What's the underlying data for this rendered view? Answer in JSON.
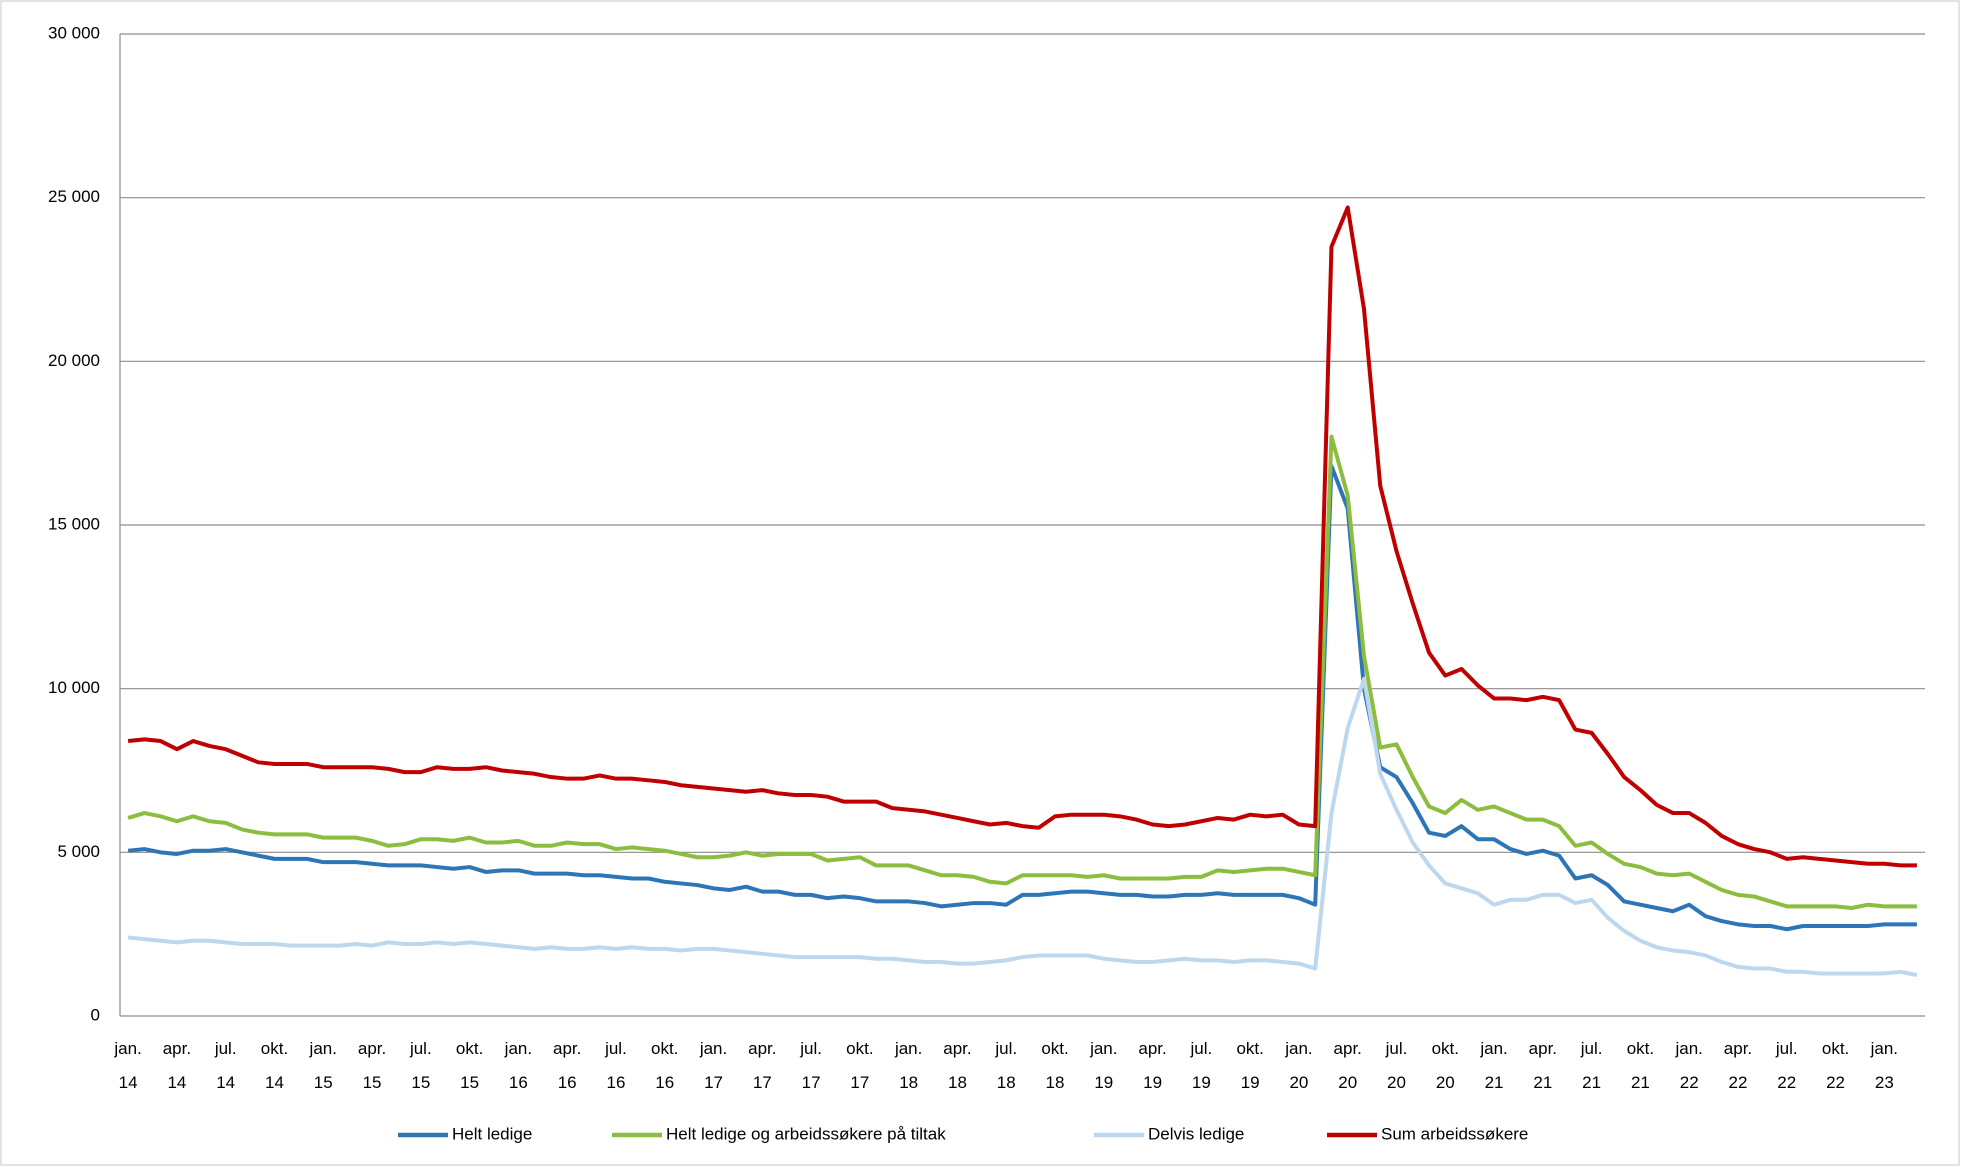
{
  "chart_data": {
    "type": "line",
    "categories": [
      "jan. 14",
      null,
      null,
      "apr. 14",
      null,
      null,
      "jul. 14",
      null,
      null,
      "okt. 14",
      null,
      null,
      "jan. 15",
      null,
      null,
      "apr. 15",
      null,
      null,
      "jul. 15",
      null,
      null,
      "okt. 15",
      null,
      null,
      "jan. 16",
      null,
      null,
      "apr. 16",
      null,
      null,
      "jul. 16",
      null,
      null,
      "okt. 16",
      null,
      null,
      "jan. 17",
      null,
      null,
      "apr. 17",
      null,
      null,
      "jul. 17",
      null,
      null,
      "okt. 17",
      null,
      null,
      "jan. 18",
      null,
      null,
      "apr. 18",
      null,
      null,
      "jul. 18",
      null,
      null,
      "okt. 18",
      null,
      null,
      "jan. 19",
      null,
      null,
      "apr. 19",
      null,
      null,
      "jul. 19",
      null,
      null,
      "okt. 19",
      null,
      null,
      "jan. 20",
      null,
      null,
      "apr. 20",
      null,
      null,
      "jul. 20",
      null,
      null,
      "okt. 20",
      null,
      null,
      "jan. 21",
      null,
      null,
      "apr. 21",
      null,
      null,
      "jul. 21",
      null,
      null,
      "okt. 21",
      null,
      null,
      "jan. 22",
      null,
      null,
      "apr. 22",
      null,
      null,
      "jul. 22",
      null,
      null,
      "okt. 22",
      null,
      null,
      "jan. 23",
      null,
      null
    ],
    "series": [
      {
        "name": "Helt ledige",
        "color": "#2e75b6",
        "values": [
          5050,
          5100,
          5000,
          4950,
          5050,
          5050,
          5100,
          5000,
          4900,
          4800,
          4800,
          4800,
          4700,
          4700,
          4700,
          4650,
          4600,
          4600,
          4600,
          4550,
          4500,
          4550,
          4400,
          4450,
          4450,
          4350,
          4350,
          4350,
          4300,
          4300,
          4250,
          4200,
          4200,
          4100,
          4050,
          4000,
          3900,
          3850,
          3950,
          3800,
          3800,
          3700,
          3700,
          3600,
          3650,
          3600,
          3500,
          3500,
          3500,
          3450,
          3350,
          3400,
          3450,
          3450,
          3400,
          3700,
          3700,
          3750,
          3800,
          3800,
          3750,
          3700,
          3700,
          3650,
          3650,
          3700,
          3700,
          3750,
          3700,
          3700,
          3700,
          3700,
          3600,
          3400,
          16800,
          15500,
          10000,
          7600,
          7300,
          6500,
          5600,
          5500,
          5800,
          5400,
          5400,
          5100,
          4950,
          5050,
          4900,
          4200,
          4300,
          4000,
          3500,
          3400,
          3300,
          3200,
          3400,
          3050,
          2900,
          2800,
          2750,
          2750,
          2650,
          2750,
          2750,
          2750,
          2750,
          2750,
          2800,
          2800,
          2800
        ]
      },
      {
        "name": "Helt ledige og arbeidssøkere på tiltak",
        "color": "#8cbd3f",
        "values": [
          6050,
          6200,
          6100,
          5950,
          6100,
          5950,
          5900,
          5700,
          5600,
          5550,
          5550,
          5550,
          5450,
          5450,
          5450,
          5350,
          5200,
          5250,
          5400,
          5400,
          5350,
          5450,
          5300,
          5300,
          5350,
          5200,
          5200,
          5300,
          5250,
          5250,
          5100,
          5150,
          5100,
          5050,
          4950,
          4850,
          4850,
          4900,
          5000,
          4900,
          4950,
          4950,
          4950,
          4750,
          4800,
          4850,
          4600,
          4600,
          4600,
          4450,
          4300,
          4300,
          4250,
          4100,
          4050,
          4300,
          4300,
          4300,
          4300,
          4250,
          4300,
          4200,
          4200,
          4200,
          4200,
          4250,
          4250,
          4450,
          4400,
          4450,
          4500,
          4500,
          4400,
          4300,
          17700,
          15900,
          11000,
          8200,
          8300,
          7300,
          6400,
          6200,
          6600,
          6300,
          6400,
          6200,
          6000,
          6000,
          5800,
          5200,
          5300,
          4950,
          4650,
          4550,
          4350,
          4300,
          4350,
          4100,
          3850,
          3700,
          3650,
          3500,
          3350,
          3350,
          3350,
          3350,
          3300,
          3400,
          3350,
          3350,
          3350
        ]
      },
      {
        "name": "Delvis ledige",
        "color": "#bdd7ee",
        "values": [
          2400,
          2350,
          2300,
          2250,
          2300,
          2300,
          2250,
          2200,
          2200,
          2200,
          2150,
          2150,
          2150,
          2150,
          2200,
          2150,
          2250,
          2200,
          2200,
          2250,
          2200,
          2250,
          2200,
          2150,
          2100,
          2050,
          2100,
          2050,
          2050,
          2100,
          2050,
          2100,
          2050,
          2050,
          2000,
          2050,
          2050,
          2000,
          1950,
          1900,
          1850,
          1800,
          1800,
          1800,
          1800,
          1800,
          1750,
          1750,
          1700,
          1650,
          1650,
          1600,
          1600,
          1650,
          1700,
          1800,
          1850,
          1850,
          1850,
          1850,
          1750,
          1700,
          1650,
          1650,
          1700,
          1750,
          1700,
          1700,
          1650,
          1700,
          1700,
          1650,
          1600,
          1450,
          6200,
          8800,
          10300,
          7400,
          6300,
          5300,
          4600,
          4050,
          3900,
          3750,
          3400,
          3550,
          3550,
          3700,
          3700,
          3450,
          3550,
          3000,
          2600,
          2300,
          2100,
          2000,
          1950,
          1850,
          1650,
          1500,
          1450,
          1450,
          1350,
          1350,
          1300,
          1300,
          1300,
          1300,
          1300,
          1350,
          1250
        ]
      },
      {
        "name": "Sum arbeidssøkere",
        "color": "#c00000",
        "values": [
          8400,
          8450,
          8400,
          8150,
          8400,
          8250,
          8150,
          7950,
          7750,
          7700,
          7700,
          7700,
          7600,
          7600,
          7600,
          7600,
          7550,
          7450,
          7450,
          7600,
          7550,
          7550,
          7600,
          7500,
          7450,
          7400,
          7300,
          7250,
          7250,
          7350,
          7250,
          7250,
          7200,
          7150,
          7050,
          7000,
          6950,
          6900,
          6850,
          6900,
          6800,
          6750,
          6750,
          6700,
          6550,
          6550,
          6550,
          6350,
          6300,
          6250,
          6150,
          6050,
          5950,
          5850,
          5900,
          5800,
          5750,
          6100,
          6150,
          6150,
          6150,
          6100,
          6000,
          5850,
          5800,
          5850,
          5950,
          6050,
          6000,
          6150,
          6100,
          6150,
          5850,
          5800,
          23500,
          24700,
          21600,
          16200,
          14200,
          12600,
          11100,
          10400,
          10600,
          10100,
          9700,
          9700,
          9650,
          9750,
          9650,
          8750,
          8650,
          8000,
          7300,
          6900,
          6450,
          6200,
          6200,
          5900,
          5500,
          5250,
          5100,
          5000,
          4800,
          4850,
          4800,
          4750,
          4700,
          4650,
          4650,
          4600,
          4600
        ]
      }
    ],
    "ylim": [
      0,
      30000
    ],
    "yticks": [
      0,
      {
        "value": 5000,
        "label": "5 000"
      },
      {
        "value": 10000,
        "label": "10 000"
      },
      {
        "value": 15000,
        "label": "15 000"
      },
      {
        "value": 20000,
        "label": "20 000"
      },
      {
        "value": 25000,
        "label": "25 000"
      },
      {
        "value": 30000,
        "label": "30 000"
      }
    ],
    "grid": true,
    "legend": "bottom"
  }
}
